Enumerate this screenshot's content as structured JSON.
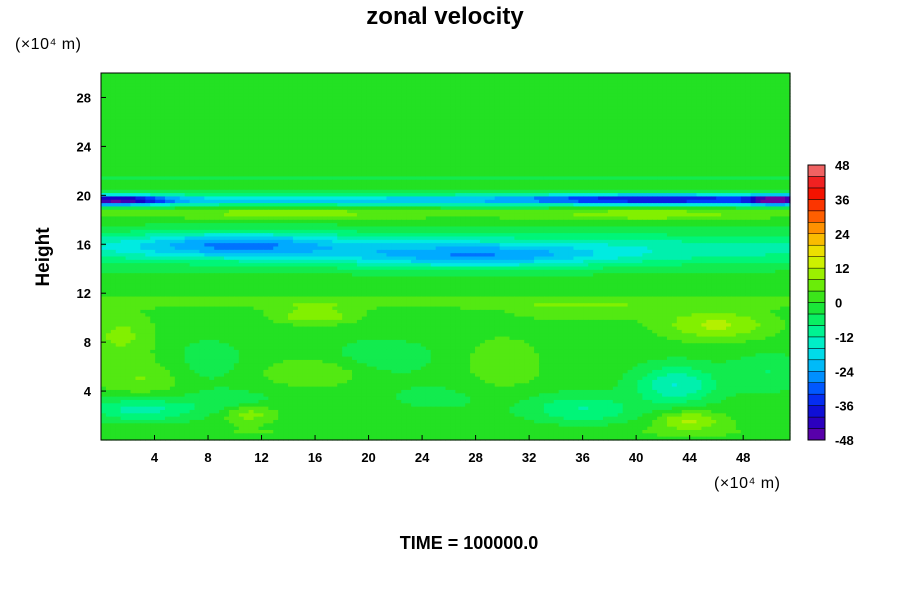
{
  "chart_data": {
    "type": "heatmap",
    "title": "zonal velocity",
    "ylabel": "Height",
    "xlabel": "",
    "x_unit": "(×10⁴ m)",
    "y_unit": "(×10⁴ m)",
    "footer": "TIME = 100000.0",
    "xlim": [
      0,
      51.5
    ],
    "ylim": [
      0,
      30
    ],
    "x_ticks": [
      4,
      8,
      12,
      16,
      20,
      24,
      28,
      32,
      36,
      40,
      44,
      48
    ],
    "y_ticks": [
      4,
      8,
      12,
      16,
      20,
      24,
      28
    ],
    "colorbar": {
      "min": -48,
      "max": 48,
      "step": 4,
      "ticks": [
        48,
        36,
        24,
        12,
        0,
        -12,
        -24,
        -36,
        -48
      ]
    },
    "features": [
      {
        "x": 25,
        "y": 26,
        "value": 0,
        "sx": 60,
        "sy": 6
      },
      {
        "x": 25,
        "y": 21.4,
        "value": -6,
        "sx": 60,
        "sy": 0.25
      },
      {
        "x": 25,
        "y": 19.6,
        "value": -20,
        "sx": 60,
        "sy": 0.5
      },
      {
        "x": 1,
        "y": 19.6,
        "value": -32,
        "sx": 4,
        "sy": 0.4
      },
      {
        "x": 42,
        "y": 19.7,
        "value": -22,
        "sx": 10,
        "sy": 0.4
      },
      {
        "x": 50.5,
        "y": 19.6,
        "value": -28,
        "sx": 2,
        "sy": 0.4
      },
      {
        "x": 25,
        "y": 18.5,
        "value": 4,
        "sx": 60,
        "sy": 0.5
      },
      {
        "x": 14,
        "y": 18.6,
        "value": 6,
        "sx": 6,
        "sy": 0.5
      },
      {
        "x": 41,
        "y": 18.4,
        "value": 6,
        "sx": 6,
        "sy": 0.5
      },
      {
        "x": 25,
        "y": 15.6,
        "value": -13,
        "sx": 60,
        "sy": 1.4
      },
      {
        "x": 10,
        "y": 16,
        "value": -16,
        "sx": 8,
        "sy": 1
      },
      {
        "x": 28,
        "y": 15,
        "value": -15,
        "sx": 10,
        "sy": 1
      },
      {
        "x": 25,
        "y": 12.3,
        "value": 2,
        "sx": 60,
        "sy": 0.6
      },
      {
        "x": 25,
        "y": 11.2,
        "value": 5,
        "sx": 60,
        "sy": 0.4
      },
      {
        "x": 16,
        "y": 10.2,
        "value": 10,
        "sx": 3,
        "sy": 0.7
      },
      {
        "x": 46,
        "y": 9.4,
        "value": 11,
        "sx": 4,
        "sy": 1.2
      },
      {
        "x": 36,
        "y": 10.5,
        "value": 4,
        "sx": 6,
        "sy": 0.8
      },
      {
        "x": 1.5,
        "y": 8.5,
        "value": 7,
        "sx": 2.5,
        "sy": 2
      },
      {
        "x": 8,
        "y": 6.5,
        "value": -4,
        "sx": 3,
        "sy": 2
      },
      {
        "x": 21,
        "y": 6.8,
        "value": -5,
        "sx": 4,
        "sy": 1.5
      },
      {
        "x": 3,
        "y": 5,
        "value": 6,
        "sx": 3,
        "sy": 1.5
      },
      {
        "x": 16,
        "y": 5.5,
        "value": 6,
        "sx": 4,
        "sy": 1.2
      },
      {
        "x": 30,
        "y": 6,
        "value": 5,
        "sx": 3,
        "sy": 2.5
      },
      {
        "x": 43,
        "y": 4.5,
        "value": -14,
        "sx": 3,
        "sy": 1.6
      },
      {
        "x": 50,
        "y": 5.5,
        "value": -6,
        "sx": 3,
        "sy": 1.5
      },
      {
        "x": 10,
        "y": 3,
        "value": -6,
        "sx": 3,
        "sy": 1
      },
      {
        "x": 3,
        "y": 2.5,
        "value": -12,
        "sx": 4,
        "sy": 1
      },
      {
        "x": 36,
        "y": 2.5,
        "value": -10,
        "sx": 4,
        "sy": 1.2
      },
      {
        "x": 26,
        "y": 3.5,
        "value": -3,
        "sx": 6,
        "sy": 1.5
      },
      {
        "x": 11,
        "y": 2.2,
        "value": 10,
        "sx": 2,
        "sy": 0.8
      },
      {
        "x": 44,
        "y": 1.6,
        "value": 11,
        "sx": 2.5,
        "sy": 0.8
      },
      {
        "x": 25,
        "y": 0.6,
        "value": 2,
        "sx": 60,
        "sy": 0.6
      }
    ]
  }
}
